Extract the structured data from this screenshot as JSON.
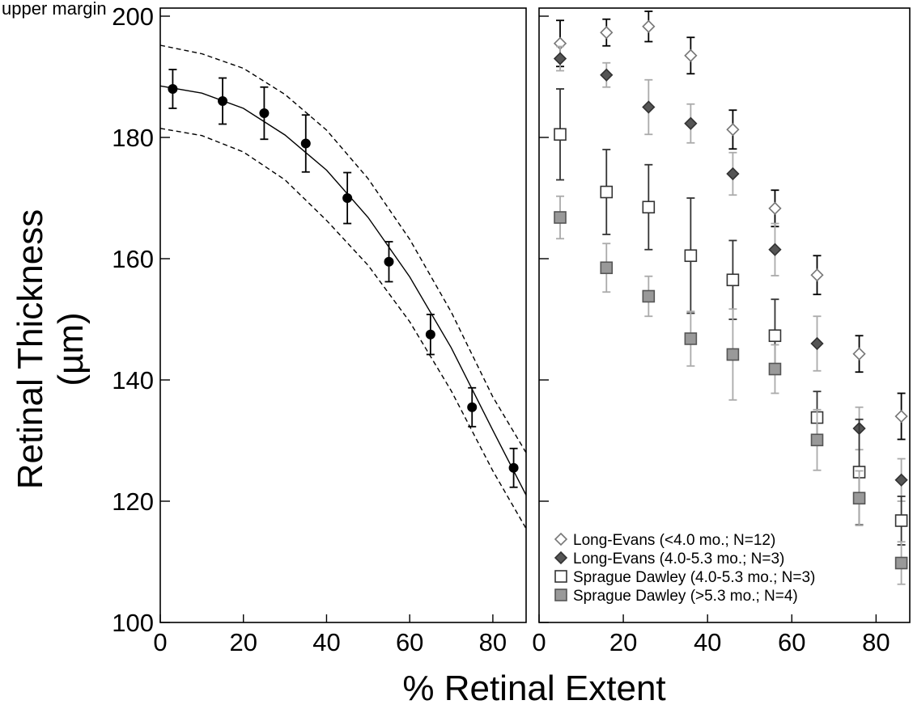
{
  "figure": {
    "top_caption": "upper margin",
    "ylabel": "Retinal Thickness",
    "ylabel_unit": "(µm)",
    "xlabel": "% Retinal Extent"
  },
  "chart_data": [
    {
      "type": "scatter",
      "panel": "left",
      "xlabel": "% Retinal Extent",
      "ylabel": "Retinal Thickness (µm)",
      "xlim": [
        0,
        88
      ],
      "ylim": [
        100,
        200
      ],
      "xticks": [
        0,
        20,
        40,
        60,
        80
      ],
      "yticks": [
        100,
        120,
        140,
        160,
        180,
        200
      ],
      "grid": false,
      "series": [
        {
          "marker": "filled-circle",
          "color": "#000000",
          "x": [
            3,
            15,
            25,
            35,
            45,
            55,
            65,
            75,
            85
          ],
          "y": [
            188,
            186,
            184,
            179,
            170,
            159.5,
            147.5,
            135.5,
            125.5
          ],
          "err": [
            3.2,
            3.8,
            4.3,
            4.7,
            4.2,
            3.3,
            3.3,
            3.2,
            3.2
          ]
        }
      ],
      "fit_curve": {
        "style": "solid",
        "x": [
          0,
          10,
          20,
          30,
          40,
          50,
          60,
          70,
          80,
          88
        ],
        "y": [
          188.5,
          187.3,
          184.8,
          180.4,
          174.6,
          166.8,
          157.0,
          145.3,
          131.7,
          121.0
        ]
      },
      "confidence_bands": [
        {
          "style": "dashed",
          "x": [
            0,
            10,
            20,
            30,
            40,
            50,
            60,
            70,
            80,
            88
          ],
          "y": [
            195.2,
            193.8,
            191.4,
            187.1,
            181.2,
            173.2,
            163.2,
            151.2,
            137.2,
            128.0
          ]
        },
        {
          "style": "dashed",
          "x": [
            0,
            10,
            20,
            30,
            40,
            50,
            60,
            70,
            80,
            88
          ],
          "y": [
            181.5,
            180.3,
            177.6,
            173.0,
            166.3,
            158.9,
            149.6,
            138.2,
            125.0,
            115.5
          ]
        }
      ]
    },
    {
      "type": "scatter",
      "panel": "right",
      "xlabel": "% Retinal Extent",
      "xlim": [
        0,
        88
      ],
      "ylim": [
        100,
        200
      ],
      "xticks": [
        0,
        20,
        40,
        60,
        80
      ],
      "yticks": [
        100,
        120,
        140,
        160,
        180,
        200
      ],
      "grid": false,
      "legend_position": "bottom-left",
      "series": [
        {
          "name": "Long-Evans (<4.0 mo.; N=12)",
          "marker": "open-diamond",
          "color": "#ffffff",
          "stroke": "#777777",
          "err_color": "#000000",
          "x": [
            5,
            16,
            26,
            36,
            46,
            56,
            66,
            76,
            86
          ],
          "y": [
            195.5,
            197.3,
            198.3,
            193.5,
            181.3,
            168.3,
            157.3,
            144.3,
            134
          ],
          "err": [
            3.8,
            2.2,
            2.5,
            3.0,
            3.2,
            3.0,
            3.2,
            3.0,
            3.8
          ]
        },
        {
          "name": "Long-Evans (4.0-5.3 mo.; N=3)",
          "marker": "filled-diamond",
          "color": "#555555",
          "stroke": "#333333",
          "err_color": "#aaaaaa",
          "x": [
            5,
            16,
            26,
            36,
            46,
            56,
            66,
            76,
            86
          ],
          "y": [
            193,
            190.3,
            185,
            182.3,
            174,
            161.5,
            146,
            132,
            123.5
          ],
          "err": [
            2.0,
            2.0,
            4.5,
            3.2,
            3.5,
            4.3,
            4.5,
            3.5,
            3.5
          ]
        },
        {
          "name": "Sprague Dawley (4.0-5.3 mo.; N=3)",
          "marker": "open-square",
          "color": "#ffffff",
          "stroke": "#333333",
          "err_color": "#333333",
          "x": [
            5,
            16,
            26,
            36,
            46,
            56,
            66,
            76,
            86
          ],
          "y": [
            180.5,
            171,
            168.5,
            160.5,
            156.5,
            147.3,
            133.8,
            124.8,
            116.8
          ],
          "err": [
            7.5,
            7.0,
            7.0,
            9.5,
            6.5,
            6.0,
            4.3,
            8.7,
            4.0
          ]
        },
        {
          "name": "Sprague Dawley (>5.3 mo.; N=4)",
          "marker": "filled-square",
          "color": "#999999",
          "stroke": "#555555",
          "err_color": "#aaaaaa",
          "x": [
            5,
            16,
            26,
            36,
            46,
            56,
            66,
            76,
            86
          ],
          "y": [
            166.8,
            158.5,
            153.8,
            146.8,
            144.2,
            141.8,
            130.1,
            120.5,
            109.8
          ],
          "err": [
            3.5,
            4.0,
            3.3,
            4.5,
            7.5,
            4.0,
            5.0,
            4.5,
            3.5
          ]
        }
      ]
    }
  ]
}
